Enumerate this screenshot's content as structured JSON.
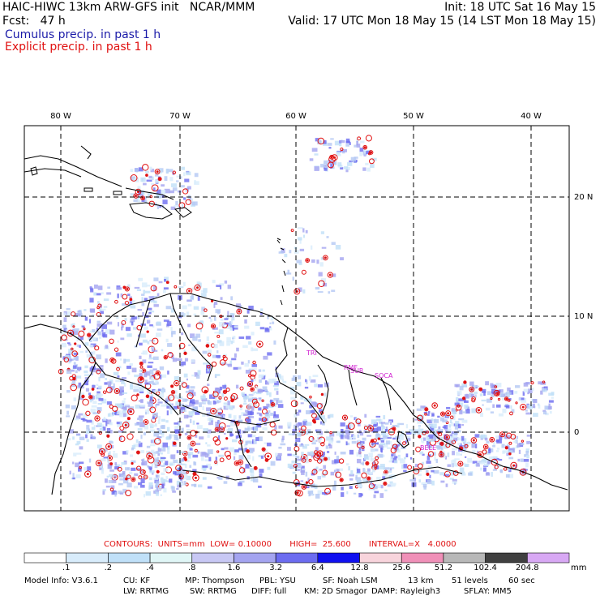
{
  "header": {
    "line1_left": "HAIC-HIWC 13km ARW-GFS init   NCAR/MMM",
    "line1_right": "Init: 18 UTC Sat 16 May 15",
    "line2_left": "Fcst:   47 h",
    "line2_right": "Valid: 17 UTC Mon 18 May 15 (14 LST Mon 18 May 15)",
    "legend_cumulus": "Cumulus precip. in past 1 h",
    "legend_explicit": "Explicit precip. in past 1 h"
  },
  "map": {
    "lon_labels": [
      "80 W",
      "70 W",
      "60 W",
      "50 W",
      "40 W"
    ],
    "lat_labels": [
      "20 N",
      "10 N",
      "0"
    ],
    "city_labels": [
      "TRI",
      "RMF",
      "SUR",
      "SOCA",
      "BELE"
    ]
  },
  "contours_text": "CONTOURS:  UNITS=mm  LOW= 0.10000       HIGH=  25.600       INTERVAL=X   4.0000",
  "colorbar": {
    "unit": "mm",
    "labels": [
      ".1",
      ".2",
      ".4",
      ".8",
      "1.6",
      "3.2",
      "6.4",
      "12.8",
      "25.6",
      "51.2",
      "102.4",
      "204.8"
    ],
    "colors": [
      "#ffffff",
      "#d8ecfb",
      "#c0e0f8",
      "#e0f6f6",
      "#c8c8f4",
      "#a4a4f0",
      "#6c6cf0",
      "#1010f0",
      "#f8d4dc",
      "#f090b8",
      "#b8b8b8",
      "#404040",
      "#d8a8f4"
    ]
  },
  "model_info": {
    "line1": [
      {
        "key": "model",
        "text": "Model Info: V3.6.1"
      },
      {
        "key": "cu",
        "text": "CU: KF"
      },
      {
        "key": "mp",
        "text": "MP: Thompson"
      },
      {
        "key": "pbl",
        "text": "PBL: YSU"
      },
      {
        "key": "sf",
        "text": "SF: Noah LSM"
      },
      {
        "key": "res",
        "text": "13 km"
      },
      {
        "key": "levels",
        "text": "51 levels"
      },
      {
        "key": "dt",
        "text": "60 sec"
      }
    ],
    "line2": [
      {
        "key": "lw",
        "text": "LW: RRTMG"
      },
      {
        "key": "sw",
        "text": "SW: RRTMG"
      },
      {
        "key": "diff",
        "text": "DIFF: full"
      },
      {
        "key": "km",
        "text": "KM: 2D Smagor"
      },
      {
        "key": "damp",
        "text": "DAMP: Rayleigh3"
      },
      {
        "key": "sflay",
        "text": "SFLAY: MM5"
      }
    ]
  },
  "colors": {
    "cumulus_label": "#1a1aa8",
    "explicit_label": "#e01010"
  }
}
